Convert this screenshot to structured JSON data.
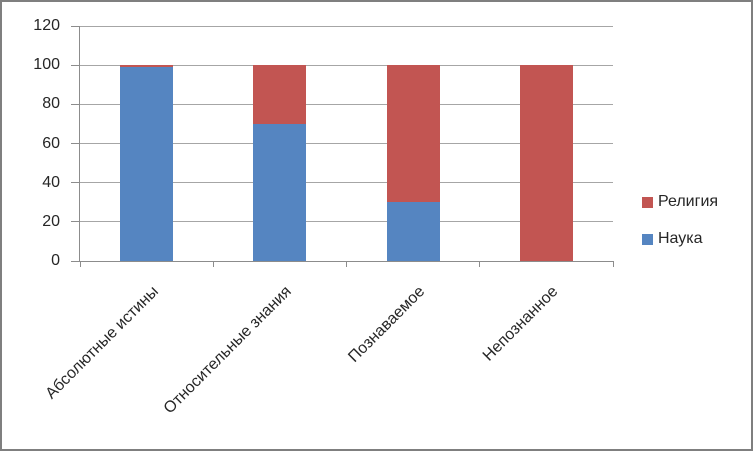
{
  "chart_data": {
    "type": "bar",
    "stacked": true,
    "title": "",
    "xlabel": "",
    "ylabel": "",
    "categories": [
      "Абсолютные истины",
      "Относительные знания",
      "Познаваемое",
      "Непознанное"
    ],
    "series": [
      {
        "name": "Наука",
        "color": "#5585C1",
        "values": [
          99,
          70,
          30,
          0
        ]
      },
      {
        "name": "Религия",
        "color": "#C25552",
        "values": [
          1,
          30,
          70,
          100
        ]
      }
    ],
    "legend_order": [
      "Религия",
      "Наука"
    ],
    "legend_position": "right",
    "y_ticks": [
      0,
      20,
      40,
      60,
      80,
      100,
      120
    ],
    "ylim": [
      0,
      120
    ],
    "grid": true,
    "colors": {
      "gridline": "#a6a6a6",
      "axis": "#8c8c8c",
      "border": "#7f7f7f",
      "text": "#262626"
    }
  }
}
